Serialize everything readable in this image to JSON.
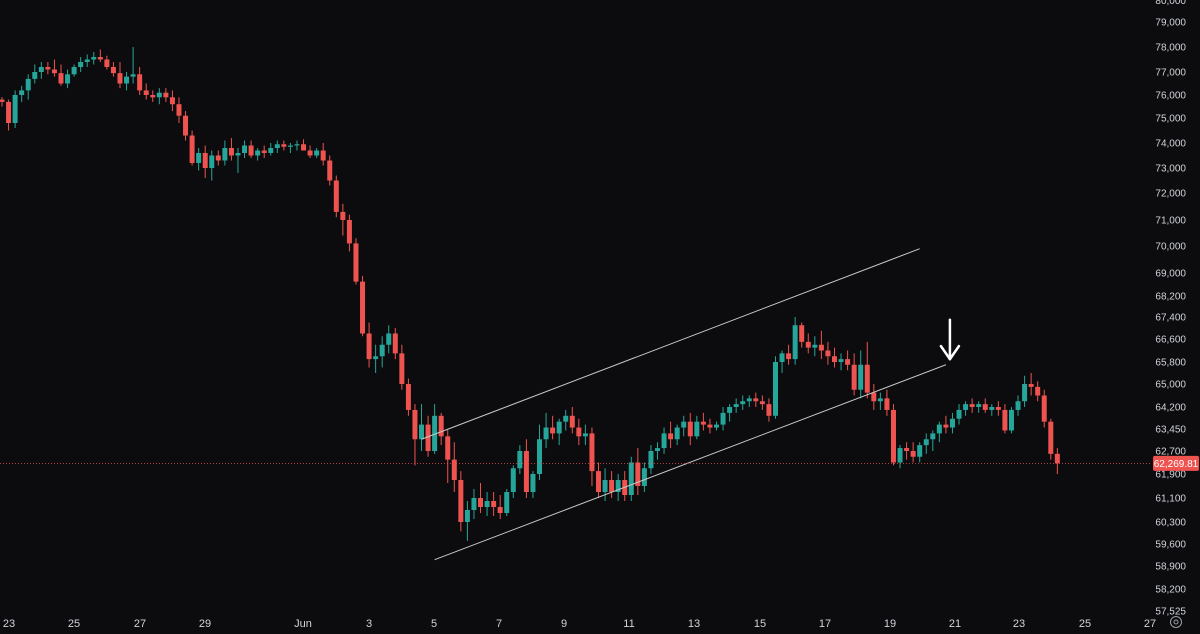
{
  "chart_data": {
    "type": "candlestick",
    "colors": {
      "background": "#0c0c0e",
      "up": "#26a69a",
      "down": "#ef5350",
      "trendline": "#c8c8c8",
      "annotation": "#ffffff",
      "last_price": "#ef5350",
      "axis_text": "#d1d4dc"
    },
    "grid": false,
    "y_axis": {
      "position": "right",
      "ticks": [
        "80,000",
        "79,000",
        "78,000",
        "77,000",
        "76,000",
        "75,000",
        "74,000",
        "73,000",
        "72,000",
        "71,000",
        "70,000",
        "69,000",
        "68,200",
        "67,400",
        "66,600",
        "65,800",
        "65,000",
        "64,200",
        "63,450",
        "62,700",
        "61,900",
        "61,100",
        "60,300",
        "59,600",
        "58,900",
        "58,200",
        "57,525"
      ]
    },
    "x_axis": {
      "ticks": [
        "23",
        "25",
        "27",
        "29",
        "Jun",
        "3",
        "5",
        "7",
        "9",
        "11",
        "13",
        "15",
        "17",
        "19",
        "21",
        "23",
        "25",
        "27"
      ]
    },
    "last_price": "62,269.81",
    "series": [
      {
        "values": [
          [
            75800,
            75900,
            75500,
            75700
          ],
          [
            75700,
            75800,
            74500,
            74800
          ],
          [
            74800,
            76200,
            74600,
            76000
          ],
          [
            76000,
            76400,
            75700,
            76200
          ],
          [
            76200,
            76900,
            75800,
            76700
          ],
          [
            76700,
            77300,
            76500,
            77000
          ],
          [
            77000,
            77400,
            76700,
            77200
          ],
          [
            77200,
            77400,
            76900,
            77100
          ],
          [
            77100,
            77500,
            76800,
            76950
          ],
          [
            76950,
            77300,
            76400,
            76500
          ],
          [
            76500,
            77100,
            76300,
            76900
          ],
          [
            76900,
            77300,
            76800,
            77200
          ],
          [
            77200,
            77600,
            77000,
            77400
          ],
          [
            77400,
            77700,
            77200,
            77500
          ],
          [
            77500,
            77800,
            77300,
            77600
          ],
          [
            77600,
            77900,
            77400,
            77500
          ],
          [
            77500,
            77650,
            77100,
            77200
          ],
          [
            77200,
            77400,
            76800,
            76950
          ],
          [
            76950,
            77400,
            76300,
            76500
          ],
          [
            76500,
            77000,
            76200,
            76800
          ],
          [
            76800,
            78000,
            76500,
            76900
          ],
          [
            76900,
            77200,
            76000,
            76200
          ],
          [
            76200,
            76500,
            75800,
            76000
          ],
          [
            76000,
            76200,
            75700,
            75900
          ],
          [
            75900,
            76300,
            75600,
            76100
          ],
          [
            76100,
            76300,
            75700,
            75900
          ],
          [
            75900,
            76200,
            75300,
            75600
          ],
          [
            75600,
            75900,
            74800,
            75100
          ],
          [
            75100,
            75300,
            74100,
            74300
          ],
          [
            74300,
            74500,
            73100,
            73200
          ],
          [
            73200,
            73800,
            72900,
            73600
          ],
          [
            73600,
            73900,
            72600,
            73000
          ],
          [
            73000,
            73700,
            72500,
            73500
          ],
          [
            73500,
            73700,
            73100,
            73300
          ],
          [
            73300,
            74100,
            73100,
            73800
          ],
          [
            73800,
            74200,
            73300,
            73500
          ],
          [
            73500,
            73800,
            72800,
            73600
          ],
          [
            73600,
            74100,
            73400,
            73900
          ],
          [
            73900,
            74100,
            73400,
            73500
          ],
          [
            73500,
            73800,
            73300,
            73700
          ],
          [
            73700,
            73900,
            73400,
            73600
          ],
          [
            73600,
            74000,
            73500,
            73800
          ],
          [
            73800,
            74100,
            73600,
            73950
          ],
          [
            73950,
            74100,
            73700,
            73850
          ],
          [
            73850,
            74000,
            73600,
            73900
          ],
          [
            73900,
            74100,
            73700,
            73950
          ],
          [
            73950,
            74150,
            73700,
            73700
          ],
          [
            73700,
            73900,
            73400,
            73500
          ],
          [
            73500,
            73800,
            73400,
            73700
          ],
          [
            73700,
            74000,
            73100,
            73300
          ],
          [
            73300,
            73500,
            72300,
            72500
          ],
          [
            72500,
            72700,
            71100,
            71300
          ],
          [
            71300,
            71600,
            70400,
            71000
          ],
          [
            71000,
            71200,
            69800,
            70100
          ],
          [
            70100,
            70300,
            68600,
            68700
          ],
          [
            68700,
            68900,
            66700,
            66800
          ],
          [
            66800,
            67200,
            65600,
            65900
          ],
          [
            65900,
            66400,
            65400,
            66000
          ],
          [
            66000,
            66700,
            65600,
            66400
          ],
          [
            66400,
            67100,
            66100,
            66800
          ],
          [
            66800,
            67000,
            65900,
            66100
          ],
          [
            66100,
            66400,
            64800,
            65000
          ],
          [
            65000,
            65200,
            63900,
            64100
          ],
          [
            64100,
            64300,
            62200,
            63100
          ],
          [
            63100,
            64300,
            62700,
            63600
          ],
          [
            63600,
            63900,
            62500,
            62700
          ],
          [
            62700,
            64300,
            62600,
            63900
          ],
          [
            63900,
            64000,
            62900,
            63200
          ],
          [
            63200,
            63450,
            61600,
            62400
          ],
          [
            62400,
            63000,
            61300,
            61700
          ],
          [
            61700,
            62000,
            60000,
            60300
          ],
          [
            60300,
            61000,
            59700,
            60700
          ],
          [
            60700,
            61400,
            60400,
            61100
          ],
          [
            61100,
            61600,
            60600,
            60800
          ],
          [
            60800,
            61300,
            60500,
            61000
          ],
          [
            61000,
            61300,
            60500,
            60800
          ],
          [
            60800,
            61200,
            60400,
            60600
          ],
          [
            60600,
            61400,
            60500,
            61300
          ],
          [
            61300,
            62200,
            61100,
            62100
          ],
          [
            62100,
            62900,
            61900,
            62700
          ],
          [
            62700,
            63100,
            61100,
            61300
          ],
          [
            61300,
            62000,
            61100,
            61900
          ],
          [
            61900,
            63600,
            61700,
            63100
          ],
          [
            63100,
            64000,
            62800,
            63500
          ],
          [
            63500,
            63900,
            63100,
            63300
          ],
          [
            63300,
            63800,
            62900,
            63700
          ],
          [
            63700,
            64100,
            63400,
            63900
          ],
          [
            63900,
            64200,
            63300,
            63500
          ],
          [
            63500,
            63800,
            62900,
            63200
          ],
          [
            63200,
            63600,
            62900,
            63300
          ],
          [
            63300,
            63500,
            61500,
            62000
          ],
          [
            62000,
            62300,
            61100,
            61300
          ],
          [
            61300,
            62100,
            61000,
            61700
          ],
          [
            61700,
            62000,
            61100,
            61300
          ],
          [
            61300,
            61900,
            61000,
            61700
          ],
          [
            61700,
            62000,
            61000,
            61200
          ],
          [
            61200,
            62500,
            61000,
            62300
          ],
          [
            62300,
            62800,
            61200,
            61500
          ],
          [
            61500,
            62300,
            61300,
            62100
          ],
          [
            62100,
            62900,
            61900,
            62700
          ],
          [
            62700,
            63000,
            62400,
            62800
          ],
          [
            62800,
            63500,
            62600,
            63300
          ],
          [
            63300,
            63700,
            62800,
            63100
          ],
          [
            63100,
            63600,
            62900,
            63500
          ],
          [
            63500,
            63900,
            63200,
            63700
          ],
          [
            63700,
            64000,
            62900,
            63200
          ],
          [
            63200,
            63900,
            63100,
            63700
          ],
          [
            63700,
            64000,
            63400,
            63600
          ],
          [
            63600,
            63800,
            63300,
            63500
          ],
          [
            63500,
            63700,
            63400,
            63600
          ],
          [
            63600,
            64200,
            63400,
            64000
          ],
          [
            64000,
            64300,
            63700,
            64200
          ],
          [
            64200,
            64500,
            64000,
            64300
          ],
          [
            64300,
            64600,
            64100,
            64400
          ],
          [
            64400,
            64600,
            64200,
            64500
          ],
          [
            64500,
            64700,
            64200,
            64400
          ],
          [
            64400,
            64600,
            64100,
            64300
          ],
          [
            64300,
            64500,
            63700,
            63900
          ],
          [
            63900,
            66000,
            63800,
            65800
          ],
          [
            65800,
            66200,
            65400,
            66100
          ],
          [
            66100,
            66400,
            65700,
            65900
          ],
          [
            65900,
            67400,
            65700,
            67100
          ],
          [
            67100,
            67200,
            66300,
            66500
          ],
          [
            66500,
            66800,
            66100,
            66300
          ],
          [
            66300,
            66700,
            66000,
            66400
          ],
          [
            66400,
            66900,
            65900,
            66200
          ],
          [
            66200,
            66500,
            65700,
            66000
          ],
          [
            66000,
            66300,
            65600,
            65800
          ],
          [
            65800,
            66100,
            65500,
            65900
          ],
          [
            65900,
            66200,
            65500,
            65700
          ],
          [
            65700,
            66100,
            64600,
            64800
          ],
          [
            64800,
            66200,
            64500,
            65700
          ],
          [
            65700,
            66500,
            64500,
            64700
          ],
          [
            64700,
            65000,
            64100,
            64400
          ],
          [
            64400,
            64700,
            64100,
            64500
          ],
          [
            64500,
            64800,
            63900,
            64100
          ],
          [
            64100,
            64300,
            62200,
            62300
          ],
          [
            62300,
            62900,
            62100,
            62800
          ],
          [
            62800,
            63000,
            62400,
            62700
          ],
          [
            62700,
            63000,
            62300,
            62500
          ],
          [
            62500,
            63000,
            62300,
            62900
          ],
          [
            62900,
            63300,
            62600,
            63100
          ],
          [
            63100,
            63400,
            62700,
            63300
          ],
          [
            63300,
            63700,
            63000,
            63600
          ],
          [
            63600,
            63900,
            63300,
            63500
          ],
          [
            63500,
            64000,
            63300,
            63800
          ],
          [
            63800,
            64300,
            63600,
            64100
          ],
          [
            64100,
            64400,
            63900,
            64300
          ],
          [
            64300,
            64500,
            64000,
            64200
          ],
          [
            64200,
            64400,
            64000,
            64300
          ],
          [
            64300,
            64500,
            64000,
            64100
          ],
          [
            64100,
            64300,
            63900,
            64200
          ],
          [
            64200,
            64400,
            63900,
            64100
          ],
          [
            64100,
            64300,
            63300,
            63400
          ],
          [
            63400,
            64200,
            63300,
            64100
          ],
          [
            64100,
            64600,
            63900,
            64400
          ],
          [
            64400,
            65300,
            64200,
            65000
          ],
          [
            65000,
            65400,
            64600,
            64900
          ],
          [
            64900,
            65100,
            64400,
            64600
          ],
          [
            64600,
            64800,
            63500,
            63700
          ],
          [
            63700,
            63800,
            62400,
            62600
          ],
          [
            62600,
            62800,
            61900,
            62269.81
          ]
        ]
      }
    ],
    "annotations": [
      {
        "type": "trendline",
        "points": [
          [
            64,
            63100
          ],
          [
            140,
            69900
          ]
        ]
      },
      {
        "type": "trendline",
        "points": [
          [
            66,
            59100
          ],
          [
            144,
            65700
          ]
        ]
      },
      {
        "type": "arrow",
        "direction": "down",
        "points": [
          [
            144,
            67300
          ],
          [
            144,
            65900
          ]
        ]
      }
    ]
  }
}
